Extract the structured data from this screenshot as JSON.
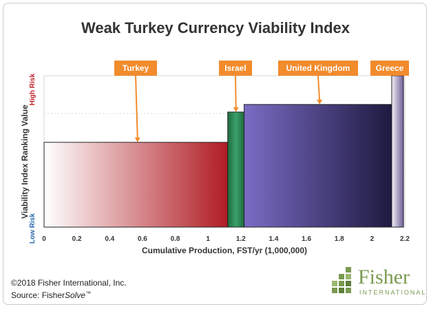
{
  "chart_data": {
    "type": "bar",
    "title": "Weak Turkey Currency Viability Index",
    "xlabel": "Cumulative Production, FST/yr (1,000,000)",
    "ylabel": "Viability Index Ranking Value",
    "y_high_label": "High Risk",
    "y_low_label": "Low Risk",
    "xlim": [
      0,
      2.2
    ],
    "ylim": [
      0,
      1
    ],
    "x_ticks": [
      "0",
      "0.2",
      "0.4",
      "0.6",
      "0.8",
      "1",
      "1.2",
      "1.4",
      "1.6",
      "1.8",
      "2",
      "2.2"
    ],
    "grid": true,
    "series": [
      {
        "name": "Turkey",
        "x_start": 0.0,
        "x_end": 1.12,
        "value": 0.56,
        "color": "#b01c24"
      },
      {
        "name": "Israel",
        "x_start": 1.12,
        "x_end": 1.22,
        "value": 0.76,
        "color": "#2e8b57"
      },
      {
        "name": "United Kingdom",
        "x_start": 1.22,
        "x_end": 2.12,
        "value": 0.81,
        "color": "#5a4aa6"
      },
      {
        "name": "Greece",
        "x_start": 2.12,
        "x_end": 2.22,
        "value": 1.0,
        "color": "#8a7ab0"
      }
    ]
  },
  "footer": {
    "copyright": "©2018 Fisher International, Inc.",
    "source_prefix": "Source: Fisher",
    "source_product": "Solve",
    "source_tm": "™"
  },
  "logo": {
    "word": "Fisher",
    "sub": "INTERNATIONAL",
    "color": "#7a9a50"
  },
  "colors": {
    "callout": "#f28b2c",
    "axis_high": "#c0242c",
    "axis_low": "#2a6ab0"
  }
}
